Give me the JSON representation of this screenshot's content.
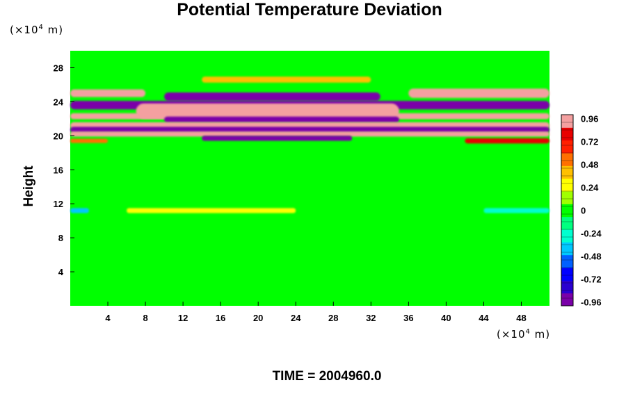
{
  "chart_data": {
    "type": "heatmap",
    "title": "Potential Temperature Deviation",
    "ylabel": "Height",
    "y_unit": {
      "prefix": "(×10",
      "exp": "4",
      "suffix": " m)"
    },
    "x_unit": {
      "prefix": "(×10",
      "exp": "4",
      "suffix": " m)"
    },
    "time_label": "TIME = 2004960.0",
    "xlim": [
      0,
      51
    ],
    "ylim": [
      0,
      30
    ],
    "x_ticks": [
      4,
      8,
      12,
      16,
      20,
      24,
      28,
      32,
      36,
      40,
      44,
      48
    ],
    "y_ticks": [
      4,
      8,
      12,
      16,
      20,
      24,
      28
    ],
    "colorbar": {
      "range": [
        -1.0,
        1.0
      ],
      "ticks": [
        0.96,
        0.72,
        0.48,
        0.24,
        0,
        -0.24,
        -0.48,
        -0.72,
        -0.96
      ],
      "tick_labels": [
        "0.96",
        "0.72",
        "0.48",
        "0.24",
        "0",
        "-0.24",
        "-0.48",
        "-0.72",
        "-0.96"
      ],
      "levels": 25,
      "colors": [
        "#7a00a8",
        "#2a00d0",
        "#0000ff",
        "#0060ff",
        "#00c8ff",
        "#00ffd0",
        "#00ff80",
        "#00ff00",
        "#a0ff00",
        "#ffff00",
        "#ffc000",
        "#ff7000",
        "#ff2000",
        "#e80000",
        "#f4a0a0"
      ]
    },
    "bands": [
      {
        "y_center": 26.6,
        "half_width": 0.35,
        "value": 0.45,
        "x_from": 14,
        "x_to": 32
      },
      {
        "y_center": 25.0,
        "half_width": 0.45,
        "value": 1.0,
        "x_from": 0,
        "x_to": 8
      },
      {
        "y_center": 25.0,
        "half_width": 0.55,
        "value": 1.0,
        "x_from": 36,
        "x_to": 51
      },
      {
        "y_center": 24.6,
        "half_width": 0.5,
        "value": -1.0,
        "x_from": 10,
        "x_to": 33
      },
      {
        "y_center": 23.6,
        "half_width": 0.5,
        "value": -1.0,
        "x_from": 0,
        "x_to": 51
      },
      {
        "y_center": 22.9,
        "half_width": 0.9,
        "value": 1.0,
        "x_from": 7,
        "x_to": 35
      },
      {
        "y_center": 22.3,
        "half_width": 0.35,
        "value": 1.0,
        "x_from": 0,
        "x_to": 51
      },
      {
        "y_center": 21.9,
        "half_width": 0.35,
        "value": -1.0,
        "x_from": 10,
        "x_to": 35
      },
      {
        "y_center": 21.2,
        "half_width": 0.4,
        "value": 1.0,
        "x_from": 0,
        "x_to": 51
      },
      {
        "y_center": 20.7,
        "half_width": 0.35,
        "value": -1.0,
        "x_from": 0,
        "x_to": 51
      },
      {
        "y_center": 20.2,
        "half_width": 0.3,
        "value": 1.0,
        "x_from": 0,
        "x_to": 51
      },
      {
        "y_center": 19.7,
        "half_width": 0.3,
        "value": -1.0,
        "x_from": 14,
        "x_to": 30
      },
      {
        "y_center": 19.4,
        "half_width": 0.25,
        "value": 0.5,
        "x_from": 0,
        "x_to": 4
      },
      {
        "y_center": 19.4,
        "half_width": 0.3,
        "value": 0.8,
        "x_from": 42,
        "x_to": 51
      },
      {
        "y_center": 11.2,
        "half_width": 0.3,
        "value": 0.3,
        "x_from": 6,
        "x_to": 24
      },
      {
        "y_center": 11.2,
        "half_width": 0.3,
        "value": -0.35,
        "x_from": 0,
        "x_to": 2
      },
      {
        "y_center": 11.2,
        "half_width": 0.3,
        "value": -0.3,
        "x_from": 44,
        "x_to": 51
      }
    ]
  }
}
